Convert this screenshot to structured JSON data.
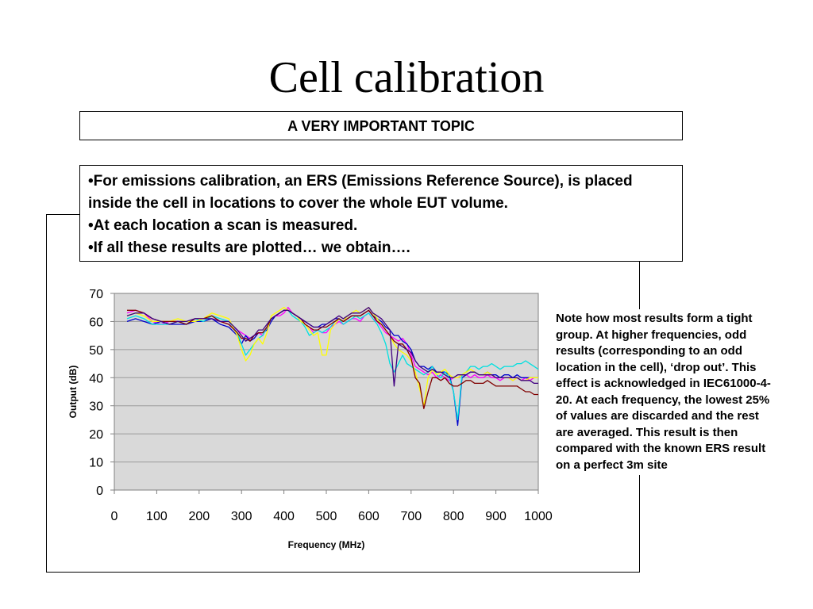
{
  "slide": {
    "title": "Cell calibration",
    "topic": "A VERY IMPORTANT TOPIC",
    "bullets": [
      "•For emissions calibration, an ERS (Emissions Reference Source), is placed inside the cell in locations to cover the whole EUT volume.",
      "•At each location a scan is measured.",
      "•If all these results are plotted… we obtain…."
    ],
    "note": "Note how most results form a tight group. At higher frequencies, odd results (corresponding to an odd location in the cell), ‘drop out’. This effect is acknowledged in IEC61000-4-20. At each frequency, the lowest 25% of values are discarded and the rest are averaged. This result is then compared with the known ERS result on a perfect 3m site"
  },
  "chart_data": {
    "type": "line",
    "xlabel": "Frequency (MHz)",
    "ylabel": "Output (dB)",
    "xlim": [
      0,
      1000
    ],
    "ylim": [
      0,
      70
    ],
    "xticks": [
      "0",
      "100",
      "200",
      "300",
      "400",
      "500",
      "600",
      "700",
      "800",
      "900",
      "1000"
    ],
    "yticks": [
      "0",
      "10",
      "20",
      "30",
      "40",
      "50",
      "60",
      "70"
    ],
    "grid": true,
    "plot_background": "#d9d9d9",
    "x": [
      30,
      50,
      70,
      90,
      110,
      130,
      150,
      170,
      190,
      210,
      230,
      250,
      270,
      290,
      300,
      310,
      320,
      330,
      340,
      350,
      360,
      370,
      380,
      390,
      400,
      410,
      420,
      430,
      440,
      450,
      460,
      470,
      480,
      490,
      500,
      510,
      520,
      530,
      540,
      550,
      560,
      570,
      580,
      590,
      600,
      610,
      620,
      630,
      640,
      650,
      660,
      670,
      680,
      690,
      700,
      710,
      720,
      730,
      740,
      750,
      760,
      770,
      780,
      790,
      800,
      810,
      820,
      830,
      840,
      850,
      860,
      870,
      880,
      890,
      900,
      910,
      920,
      930,
      940,
      950,
      960,
      970,
      980,
      990,
      1000
    ],
    "series": [
      {
        "color": "#ff00ff",
        "values": [
          63,
          64,
          63,
          60,
          59,
          60,
          60,
          59,
          61,
          61,
          61,
          60,
          59,
          57,
          56,
          55,
          54,
          55,
          56,
          55,
          58,
          61,
          62,
          62,
          63,
          65,
          63,
          62,
          61,
          59,
          58,
          56,
          57,
          56,
          56,
          58,
          59,
          60,
          59,
          60,
          61,
          61,
          60,
          62,
          63,
          61,
          60,
          58,
          56,
          55,
          54,
          53,
          54,
          52,
          48,
          44,
          43,
          42,
          41,
          42,
          40,
          41,
          40,
          39,
          40,
          40,
          41,
          41,
          40,
          41,
          40,
          40,
          41,
          40,
          40,
          39,
          40,
          40,
          39,
          40,
          39,
          40,
          39,
          40,
          40
        ]
      },
      {
        "color": "#0000cc",
        "values": [
          60,
          61,
          60,
          59,
          60,
          59,
          59,
          59,
          60,
          60,
          61,
          59,
          58,
          55,
          52,
          55,
          53,
          54,
          56,
          56,
          57,
          60,
          62,
          63,
          64,
          64,
          63,
          62,
          61,
          60,
          59,
          58,
          58,
          59,
          59,
          60,
          61,
          61,
          60,
          61,
          62,
          62,
          62,
          63,
          64,
          62,
          61,
          60,
          58,
          57,
          55,
          55,
          53,
          52,
          50,
          46,
          44,
          44,
          43,
          44,
          42,
          42,
          42,
          41,
          35,
          23,
          40,
          41,
          42,
          42,
          41,
          41,
          42,
          41,
          41,
          40,
          41,
          41,
          40,
          41,
          40,
          40,
          40,
          40,
          40
        ]
      },
      {
        "color": "#00e0e0",
        "values": [
          61,
          62,
          61,
          59,
          59,
          59,
          60,
          59,
          61,
          60,
          62,
          61,
          60,
          56,
          52,
          48,
          50,
          52,
          54,
          55,
          58,
          61,
          62,
          63,
          64,
          64,
          62,
          61,
          60,
          58,
          55,
          56,
          57,
          56,
          57,
          58,
          60,
          61,
          59,
          60,
          61,
          62,
          61,
          62,
          63,
          61,
          59,
          56,
          52,
          45,
          42,
          45,
          48,
          45,
          44,
          43,
          42,
          41,
          42,
          44,
          41,
          40,
          42,
          40,
          35,
          25,
          41,
          42,
          44,
          44,
          43,
          44,
          44,
          45,
          44,
          43,
          44,
          44,
          44,
          45,
          45,
          46,
          45,
          44,
          43
        ]
      },
      {
        "color": "#ffff00",
        "values": [
          62,
          63,
          62,
          60,
          60,
          60,
          61,
          60,
          60,
          61,
          63,
          62,
          61,
          55,
          50,
          46,
          48,
          52,
          54,
          52,
          56,
          62,
          63,
          64,
          65,
          64,
          63,
          62,
          60,
          59,
          57,
          55,
          56,
          48,
          48,
          57,
          59,
          61,
          60,
          62,
          63,
          64,
          63,
          64,
          65,
          63,
          61,
          59,
          57,
          55,
          52,
          50,
          49,
          48,
          46,
          42,
          36,
          30,
          40,
          43,
          41,
          42,
          43,
          41,
          40,
          40,
          41,
          42,
          43,
          42,
          41,
          41,
          42,
          41,
          40,
          40,
          40,
          40,
          39,
          40,
          39,
          39,
          40,
          40,
          40
        ]
      },
      {
        "color": "#800000",
        "values": [
          64,
          64,
          63,
          61,
          60,
          60,
          60,
          59,
          61,
          61,
          62,
          60,
          59,
          56,
          54,
          54,
          53,
          55,
          56,
          56,
          58,
          61,
          62,
          63,
          64,
          64,
          63,
          62,
          61,
          59,
          58,
          57,
          57,
          58,
          58,
          59,
          60,
          61,
          60,
          61,
          62,
          62,
          62,
          63,
          64,
          62,
          60,
          59,
          57,
          55,
          53,
          52,
          52,
          50,
          47,
          40,
          38,
          29,
          35,
          40,
          40,
          39,
          40,
          38,
          37,
          37,
          38,
          39,
          39,
          38,
          38,
          38,
          39,
          38,
          37,
          37,
          37,
          37,
          37,
          37,
          36,
          35,
          35,
          34,
          34
        ]
      },
      {
        "color": "#400080",
        "values": [
          62,
          63,
          63,
          61,
          60,
          59,
          60,
          60,
          61,
          61,
          61,
          60,
          60,
          57,
          55,
          53,
          54,
          55,
          57,
          57,
          59,
          61,
          62,
          63,
          64,
          64,
          63,
          62,
          61,
          60,
          59,
          58,
          58,
          58,
          59,
          60,
          61,
          62,
          61,
          62,
          63,
          63,
          63,
          64,
          65,
          63,
          62,
          61,
          59,
          57,
          37,
          52,
          51,
          50,
          49,
          46,
          44,
          43,
          42,
          43,
          42,
          42,
          41,
          40,
          40,
          41,
          41,
          41,
          42,
          42,
          41,
          41,
          41,
          41,
          40,
          40,
          40,
          40,
          40,
          40,
          39,
          39,
          39,
          38,
          38
        ]
      }
    ]
  }
}
